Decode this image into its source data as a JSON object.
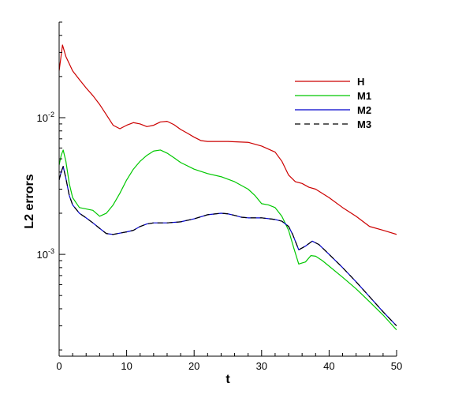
{
  "chart_data": {
    "type": "line",
    "xlabel": "t",
    "ylabel": "L2 errors",
    "xlim": [
      0,
      50
    ],
    "ylim": [
      0.00018,
      0.05
    ],
    "yscale": "log",
    "grid": false,
    "legend_position": "top-right",
    "x_ticks": [
      0,
      10,
      20,
      30,
      40,
      50
    ],
    "x_tick_labels": [
      "0",
      "10",
      "20",
      "30",
      "40",
      "50"
    ],
    "y_ticks": [
      0.001,
      0.01
    ],
    "y_tick_labels": [
      {
        "base": "10",
        "exp": "-3"
      },
      {
        "base": "10",
        "exp": "-2"
      }
    ],
    "series": [
      {
        "name": "H",
        "color": "#cc0000",
        "dash": "solid",
        "points": [
          [
            0,
            0.022
          ],
          [
            0.5,
            0.034
          ],
          [
            1,
            0.028
          ],
          [
            2,
            0.022
          ],
          [
            3,
            0.019
          ],
          [
            4,
            0.0165
          ],
          [
            5,
            0.0145
          ],
          [
            6,
            0.0125
          ],
          [
            7,
            0.0105
          ],
          [
            8,
            0.0088
          ],
          [
            9,
            0.0083
          ],
          [
            10,
            0.0088
          ],
          [
            11,
            0.0092
          ],
          [
            12,
            0.009
          ],
          [
            13,
            0.0086
          ],
          [
            14,
            0.0088
          ],
          [
            15,
            0.0093
          ],
          [
            16,
            0.0094
          ],
          [
            17,
            0.0089
          ],
          [
            18,
            0.0082
          ],
          [
            19,
            0.0077
          ],
          [
            20,
            0.0072
          ],
          [
            21,
            0.0068
          ],
          [
            22,
            0.0067
          ],
          [
            25,
            0.0067
          ],
          [
            28,
            0.0066
          ],
          [
            30,
            0.0062
          ],
          [
            32,
            0.0056
          ],
          [
            33,
            0.0048
          ],
          [
            34,
            0.0038
          ],
          [
            35,
            0.0034
          ],
          [
            36,
            0.0033
          ],
          [
            37,
            0.0031
          ],
          [
            38,
            0.003
          ],
          [
            40,
            0.0026
          ],
          [
            42,
            0.0022
          ],
          [
            44,
            0.0019
          ],
          [
            46,
            0.0016
          ],
          [
            48,
            0.0015
          ],
          [
            50,
            0.0014
          ]
        ]
      },
      {
        "name": "M1",
        "color": "#00c800",
        "dash": "solid",
        "points": [
          [
            0,
            0.0045
          ],
          [
            0.3,
            0.0053
          ],
          [
            0.6,
            0.0058
          ],
          [
            1,
            0.0048
          ],
          [
            1.5,
            0.0033
          ],
          [
            2,
            0.0026
          ],
          [
            3,
            0.0022
          ],
          [
            4,
            0.00215
          ],
          [
            5,
            0.0021
          ],
          [
            6,
            0.0019
          ],
          [
            7,
            0.002
          ],
          [
            8,
            0.0023
          ],
          [
            9,
            0.0028
          ],
          [
            10,
            0.0035
          ],
          [
            11,
            0.0042
          ],
          [
            12,
            0.0048
          ],
          [
            13,
            0.0053
          ],
          [
            14,
            0.0057
          ],
          [
            15,
            0.0058
          ],
          [
            16,
            0.0055
          ],
          [
            17,
            0.0051
          ],
          [
            18,
            0.0047
          ],
          [
            20,
            0.0042
          ],
          [
            22,
            0.0039
          ],
          [
            24,
            0.0037
          ],
          [
            26,
            0.0034
          ],
          [
            28,
            0.003
          ],
          [
            29,
            0.0027
          ],
          [
            30,
            0.00235
          ],
          [
            31,
            0.0023
          ],
          [
            32,
            0.0022
          ],
          [
            33,
            0.0019
          ],
          [
            34,
            0.0015
          ],
          [
            34.8,
            0.0011
          ],
          [
            35.5,
            0.00085
          ],
          [
            36.5,
            0.00088
          ],
          [
            37.3,
            0.00098
          ],
          [
            38,
            0.00097
          ],
          [
            39,
            0.0009
          ],
          [
            40,
            0.00082
          ],
          [
            42,
            0.00068
          ],
          [
            44,
            0.00056
          ],
          [
            46,
            0.00045
          ],
          [
            48,
            0.00036
          ],
          [
            50,
            0.00028
          ]
        ]
      },
      {
        "name": "M2",
        "color": "#0000cc",
        "dash": "solid",
        "points": [
          [
            0,
            0.0035
          ],
          [
            0.3,
            0.004
          ],
          [
            0.6,
            0.0044
          ],
          [
            1,
            0.0036
          ],
          [
            1.5,
            0.0027
          ],
          [
            2,
            0.0023
          ],
          [
            3,
            0.002
          ],
          [
            4,
            0.00185
          ],
          [
            5,
            0.0017
          ],
          [
            6,
            0.00155
          ],
          [
            7,
            0.00142
          ],
          [
            8,
            0.0014
          ],
          [
            9,
            0.00143
          ],
          [
            10,
            0.00146
          ],
          [
            11,
            0.0015
          ],
          [
            12,
            0.0016
          ],
          [
            13,
            0.00167
          ],
          [
            14,
            0.0017
          ],
          [
            16,
            0.0017
          ],
          [
            18,
            0.00173
          ],
          [
            20,
            0.00182
          ],
          [
            22,
            0.00195
          ],
          [
            24,
            0.002
          ],
          [
            25,
            0.00198
          ],
          [
            26,
            0.00193
          ],
          [
            27,
            0.00187
          ],
          [
            28,
            0.00185
          ],
          [
            30,
            0.00185
          ],
          [
            32,
            0.0018
          ],
          [
            33,
            0.00175
          ],
          [
            34,
            0.0016
          ],
          [
            34.6,
            0.0014
          ],
          [
            35.5,
            0.00108
          ],
          [
            36.5,
            0.00115
          ],
          [
            37.5,
            0.00125
          ],
          [
            38.5,
            0.00118
          ],
          [
            40,
            0.001
          ],
          [
            42,
            0.0008
          ],
          [
            44,
            0.00063
          ],
          [
            46,
            0.00049
          ],
          [
            48,
            0.00038
          ],
          [
            50,
            0.0003
          ]
        ]
      },
      {
        "name": "M3",
        "color": "#000000",
        "dash": "dashed",
        "points": [
          [
            0,
            0.0035
          ],
          [
            0.3,
            0.004
          ],
          [
            0.6,
            0.0044
          ],
          [
            1,
            0.0036
          ],
          [
            1.5,
            0.0027
          ],
          [
            2,
            0.0023
          ],
          [
            3,
            0.002
          ],
          [
            4,
            0.00185
          ],
          [
            5,
            0.0017
          ],
          [
            6,
            0.00155
          ],
          [
            7,
            0.00142
          ],
          [
            8,
            0.0014
          ],
          [
            9,
            0.00143
          ],
          [
            10,
            0.00146
          ],
          [
            11,
            0.0015
          ],
          [
            12,
            0.0016
          ],
          [
            13,
            0.00167
          ],
          [
            14,
            0.0017
          ],
          [
            16,
            0.0017
          ],
          [
            18,
            0.00173
          ],
          [
            20,
            0.00182
          ],
          [
            22,
            0.00195
          ],
          [
            24,
            0.002
          ],
          [
            25,
            0.00198
          ],
          [
            26,
            0.00193
          ],
          [
            27,
            0.00187
          ],
          [
            28,
            0.00185
          ],
          [
            30,
            0.00185
          ],
          [
            32,
            0.0018
          ],
          [
            33,
            0.00175
          ],
          [
            34,
            0.0016
          ],
          [
            34.6,
            0.0014
          ],
          [
            35.5,
            0.00108
          ],
          [
            36.5,
            0.00115
          ],
          [
            37.5,
            0.00125
          ],
          [
            38.5,
            0.00118
          ],
          [
            40,
            0.001
          ],
          [
            42,
            0.0008
          ],
          [
            44,
            0.00063
          ],
          [
            46,
            0.00049
          ],
          [
            48,
            0.00038
          ],
          [
            50,
            0.0003
          ]
        ]
      }
    ]
  }
}
